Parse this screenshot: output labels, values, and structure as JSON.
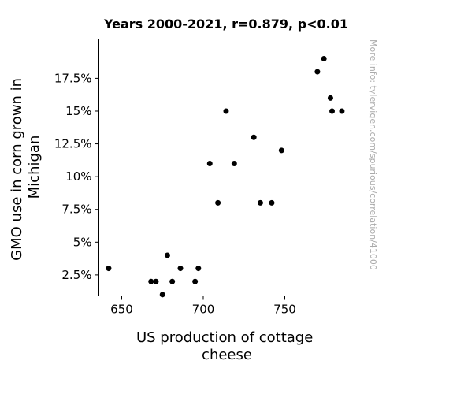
{
  "chart_data": {
    "type": "scatter",
    "title": "Years 2000-2021, r=0.879, p<0.01",
    "xlabel_lines": [
      "US production of cottage",
      "cheese"
    ],
    "ylabel_lines": [
      "GMO use in corn grown in",
      "Michigan"
    ],
    "xlim": [
      636,
      793
    ],
    "ylim": [
      0.9,
      20.5
    ],
    "x_ticks": [
      650,
      700,
      750
    ],
    "x_tick_labels": [
      "650",
      "700",
      "750"
    ],
    "y_ticks": [
      2.5,
      5,
      7.5,
      10,
      12.5,
      15,
      17.5
    ],
    "y_tick_labels": [
      "2.5%",
      "5%",
      "7.5%",
      "10%",
      "12.5%",
      "15%",
      "17.5%"
    ],
    "grid": false,
    "point_color": "#000000",
    "points": [
      {
        "x": 642,
        "y": 3
      },
      {
        "x": 668,
        "y": 2
      },
      {
        "x": 671,
        "y": 2
      },
      {
        "x": 675,
        "y": 1
      },
      {
        "x": 678,
        "y": 4
      },
      {
        "x": 681,
        "y": 2
      },
      {
        "x": 686,
        "y": 3
      },
      {
        "x": 695,
        "y": 2
      },
      {
        "x": 697,
        "y": 3
      },
      {
        "x": 704,
        "y": 11
      },
      {
        "x": 709,
        "y": 8
      },
      {
        "x": 714,
        "y": 15
      },
      {
        "x": 719,
        "y": 11
      },
      {
        "x": 731,
        "y": 13
      },
      {
        "x": 735,
        "y": 8
      },
      {
        "x": 742,
        "y": 8
      },
      {
        "x": 748,
        "y": 12
      },
      {
        "x": 770,
        "y": 18
      },
      {
        "x": 774,
        "y": 19
      },
      {
        "x": 778,
        "y": 16
      },
      {
        "x": 779,
        "y": 15
      },
      {
        "x": 785,
        "y": 15
      }
    ]
  },
  "watermark": "More info: tylervigen.com/spurious/correlation/41000"
}
